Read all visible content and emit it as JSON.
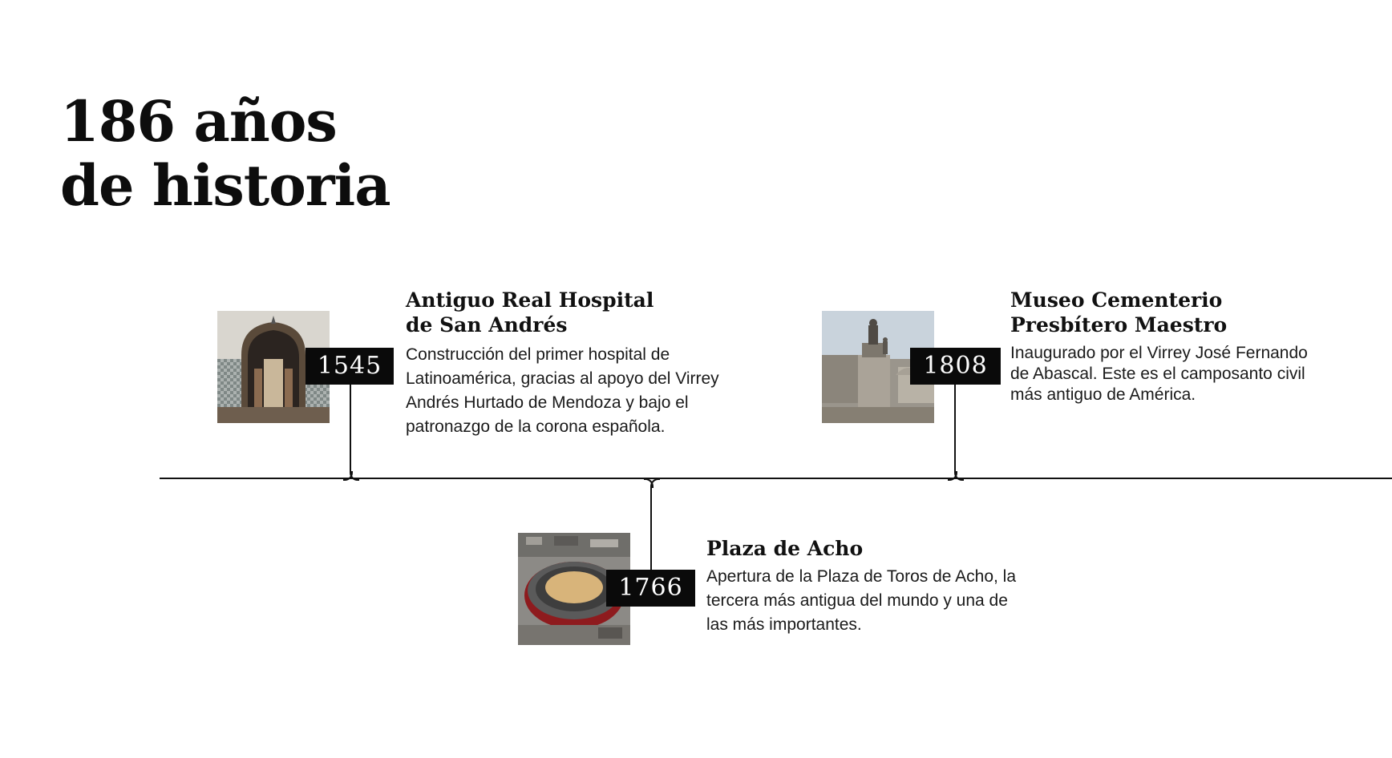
{
  "title": {
    "line1": "186 años",
    "line2": "de historia"
  },
  "events": [
    {
      "year": "1545",
      "title_line1": "Antiguo Real Hospital",
      "title_line2": "de San Andrés",
      "description": "Construcción del primer hospital de Latinoamérica, gracias al apoyo del Virrey Andrés Hurtado de Mendoza y bajo el patronazgo de la corona española."
    },
    {
      "year": "1766",
      "title_line1": "Plaza de Acho",
      "description": "Apertura de la Plaza de Toros de Acho, la tercera más antigua del mundo y una de las más importantes."
    },
    {
      "year": "1808",
      "title_line1": "Museo Cementerio",
      "title_line2": "Presbítero Maestro",
      "description": "Inaugurado por el Virrey José Fernando de Abascal. Este es el camposanto civil más antiguo de América."
    }
  ]
}
